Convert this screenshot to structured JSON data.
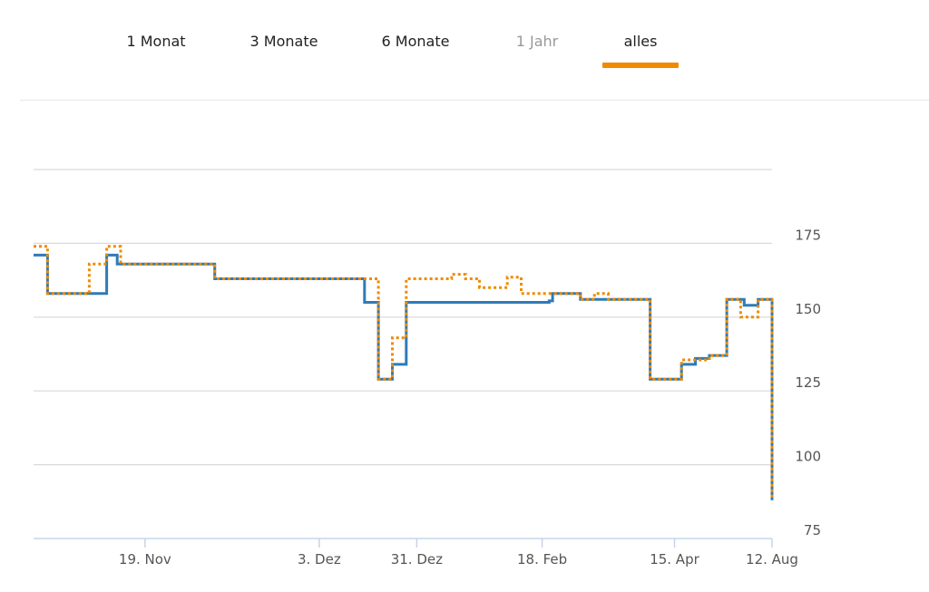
{
  "tabs": [
    {
      "label": "1 Monat",
      "active": false,
      "disabled": false
    },
    {
      "label": "3 Monate",
      "active": false,
      "disabled": false
    },
    {
      "label": "6 Monate",
      "active": false,
      "disabled": false
    },
    {
      "label": "1 Jahr",
      "active": false,
      "disabled": true
    },
    {
      "label": "alles",
      "active": true,
      "disabled": false
    }
  ],
  "colors": {
    "accent": "#f08a00",
    "series_solid": "#2e7bb8",
    "series_dotted": "#f08a00",
    "grid": "#d9d9d9",
    "axis": "#c5d5e8"
  },
  "chart_data": {
    "type": "line",
    "step": true,
    "grid": true,
    "y_axis_position": "right",
    "ylim": [
      75,
      200
    ],
    "yticks": [
      "75",
      "100",
      "125",
      "150",
      "175"
    ],
    "xticks": [
      {
        "label": "19. Nov",
        "x": 16
      },
      {
        "label": "3. Dez",
        "x": 41
      },
      {
        "label": "31. Dez",
        "x": 55
      },
      {
        "label": "18. Feb",
        "x": 73
      },
      {
        "label": "15. Apr",
        "x": 92
      },
      {
        "label": "12. Aug",
        "x": 106
      }
    ],
    "xlim": [
      0,
      106
    ],
    "series": [
      {
        "style": "solid",
        "points": [
          [
            0,
            171
          ],
          [
            2,
            158
          ],
          [
            10.5,
            171
          ],
          [
            12,
            168
          ],
          [
            26,
            163
          ],
          [
            47.5,
            155
          ],
          [
            49.5,
            129
          ],
          [
            51.5,
            134
          ],
          [
            53.5,
            155
          ],
          [
            74,
            155.5
          ],
          [
            74.5,
            158
          ],
          [
            78.5,
            156
          ],
          [
            88.5,
            129
          ],
          [
            93,
            134
          ],
          [
            95,
            136
          ],
          [
            97,
            137
          ],
          [
            99.5,
            156
          ],
          [
            102,
            154
          ],
          [
            104,
            156
          ],
          [
            106,
            88
          ]
        ]
      },
      {
        "style": "dotted",
        "points": [
          [
            0,
            174
          ],
          [
            2,
            158
          ],
          [
            8,
            168
          ],
          [
            10.5,
            174
          ],
          [
            12.5,
            168
          ],
          [
            26,
            163
          ],
          [
            49.5,
            129
          ],
          [
            51.5,
            143
          ],
          [
            53.5,
            163
          ],
          [
            60,
            164.5
          ],
          [
            62,
            163
          ],
          [
            64,
            160
          ],
          [
            68,
            163.5
          ],
          [
            70,
            158
          ],
          [
            74.5,
            158
          ],
          [
            78.5,
            156
          ],
          [
            80.5,
            158
          ],
          [
            82.5,
            156
          ],
          [
            88.5,
            129
          ],
          [
            93,
            135.5
          ],
          [
            95,
            135.5
          ],
          [
            97,
            137
          ],
          [
            99.5,
            156
          ],
          [
            101.5,
            150
          ],
          [
            104,
            156
          ],
          [
            106,
            88
          ]
        ]
      }
    ]
  }
}
